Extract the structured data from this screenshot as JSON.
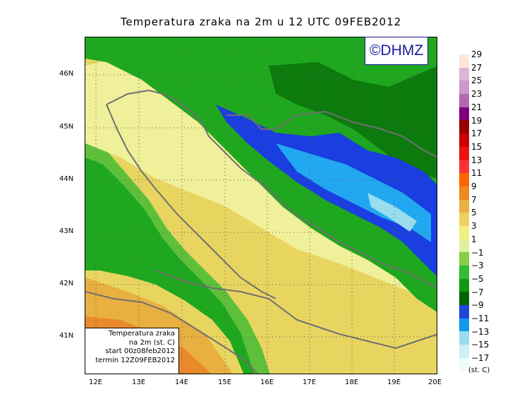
{
  "title": "Temperatura zraka na 2m u 12 UTC 09FEB2012",
  "logo_text": "©DHMZ",
  "info_box": {
    "line1": "Temperatura zraka",
    "line2": "na 2m (st. C)",
    "line3": "start 00z08feb2012",
    "line4": "termin 12Z09FEB2012"
  },
  "lat_labels": [
    "46N",
    "45N",
    "44N",
    "43N",
    "42N",
    "41N"
  ],
  "lon_labels": [
    "12E",
    "13E",
    "14E",
    "15E",
    "16E",
    "17E",
    "18E",
    "19E",
    "20E"
  ],
  "legend": {
    "labels": [
      "29",
      "27",
      "25",
      "23",
      "21",
      "19",
      "17",
      "15",
      "13",
      "11",
      "9",
      "7",
      "5",
      "3",
      "1",
      "−1",
      "−3",
      "−5",
      "−7",
      "−9",
      "−11",
      "−13",
      "−15",
      "−17"
    ],
    "unit": "(st. C)",
    "colors": [
      "#fde8d8",
      "#d9b8d9",
      "#cc99cc",
      "#b366b3",
      "#800080",
      "#990000",
      "#cc0000",
      "#ee1111",
      "#ff3333",
      "#ff6600",
      "#ee8822",
      "#e8b040",
      "#eed060",
      "#f0f080",
      "#ddf0a0",
      "#88cc44",
      "#33bb33",
      "#119911",
      "#006600",
      "#2244dd",
      "#1199ee",
      "#99ddee",
      "#ccf0f6",
      "#eefcfd"
    ]
  },
  "colors": {
    "sea_warm": "#e8d560",
    "coast_pale": "#f0ef9a",
    "land_green": "#1fa81f",
    "dark_green": "#0d7a0d",
    "cold_blue": "#1a3ee0",
    "cyan": "#22a8f0",
    "orange": "#e8892a"
  }
}
